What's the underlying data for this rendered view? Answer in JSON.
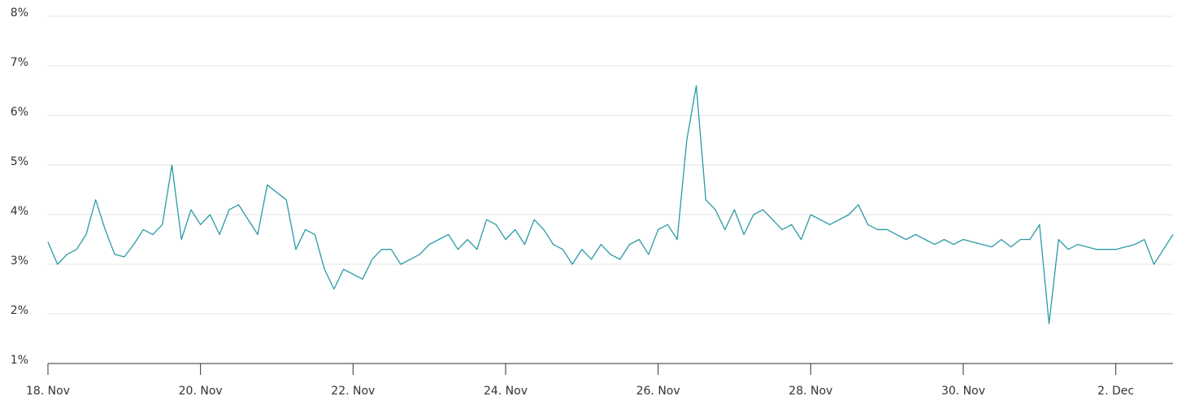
{
  "chart_data": {
    "type": "line",
    "color": "#2a9aa5",
    "values": [
      3.45,
      3.0,
      3.2,
      3.3,
      3.6,
      4.3,
      3.7,
      3.2,
      3.15,
      3.4,
      3.7,
      3.6,
      3.8,
      5.0,
      3.5,
      4.1,
      3.8,
      4.0,
      3.6,
      4.1,
      4.2,
      3.9,
      3.6,
      4.6,
      4.45,
      4.3,
      3.3,
      3.7,
      3.6,
      2.9,
      2.5,
      2.9,
      2.8,
      2.7,
      3.1,
      3.3,
      3.3,
      3.0,
      3.1,
      3.2,
      3.4,
      3.5,
      3.6,
      3.3,
      3.5,
      3.3,
      3.9,
      3.8,
      3.5,
      3.7,
      3.4,
      3.9,
      3.7,
      3.4,
      3.3,
      3.0,
      3.3,
      3.1,
      3.4,
      3.2,
      3.1,
      3.4,
      3.5,
      3.2,
      3.7,
      3.8,
      3.5,
      5.5,
      6.6,
      4.3,
      4.1,
      3.7,
      4.1,
      3.6,
      4.0,
      4.1,
      3.9,
      3.7,
      3.8,
      3.5,
      4.0,
      3.9,
      3.8,
      3.9,
      4.0,
      4.2,
      3.8,
      3.7,
      3.7,
      3.6,
      3.5,
      3.6,
      3.5,
      3.4,
      3.5,
      3.4,
      3.5,
      3.45,
      3.4,
      3.35,
      3.5,
      3.35,
      3.5,
      3.5,
      3.8,
      1.8,
      3.5,
      3.3,
      3.4,
      3.35,
      3.3,
      3.3,
      3.3,
      3.35,
      3.4,
      3.5,
      3.0,
      3.3,
      3.6
    ],
    "xlim": [
      0,
      118
    ],
    "xticks": [
      {
        "value": 0,
        "label": "18. Nov"
      },
      {
        "value": 16,
        "label": "20. Nov"
      },
      {
        "value": 32,
        "label": "22. Nov"
      },
      {
        "value": 48,
        "label": "24. Nov"
      },
      {
        "value": 64,
        "label": "26. Nov"
      },
      {
        "value": 80,
        "label": "28. Nov"
      },
      {
        "value": 96,
        "label": "30. Nov"
      },
      {
        "value": 112,
        "label": "2. Dec"
      }
    ],
    "ylim": [
      1,
      8
    ],
    "yticks": [
      {
        "value": 1,
        "label": "1%"
      },
      {
        "value": 2,
        "label": "2%"
      },
      {
        "value": 3,
        "label": "3%"
      },
      {
        "value": 4,
        "label": "4%"
      },
      {
        "value": 5,
        "label": "5%"
      },
      {
        "value": 6,
        "label": "6%"
      },
      {
        "value": 7,
        "label": "7%"
      },
      {
        "value": 8,
        "label": "8%"
      }
    ],
    "grid": true
  }
}
